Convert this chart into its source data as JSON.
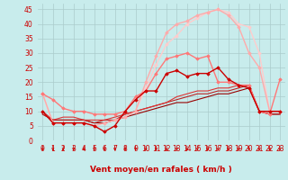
{
  "xlabel": "Vent moyen/en rafales ( km/h )",
  "background_color": "#c8ecec",
  "grid_color": "#aacccc",
  "xlim": [
    -0.5,
    23.5
  ],
  "ylim": [
    0,
    47
  ],
  "yticks": [
    0,
    5,
    10,
    15,
    20,
    25,
    30,
    35,
    40,
    45
  ],
  "xticks": [
    0,
    1,
    2,
    3,
    4,
    5,
    6,
    7,
    8,
    9,
    10,
    11,
    12,
    13,
    14,
    15,
    16,
    17,
    18,
    19,
    20,
    21,
    22,
    23
  ],
  "lines": [
    {
      "x": [
        0,
        1,
        2,
        3,
        4,
        5,
        6,
        7,
        8,
        9,
        10,
        11,
        12,
        13,
        14,
        15,
        16,
        17,
        18,
        19,
        20,
        21,
        22,
        23
      ],
      "y": [
        10,
        6,
        6,
        6,
        6,
        5,
        3,
        5,
        10,
        14,
        17,
        17,
        23,
        24,
        22,
        23,
        23,
        25,
        21,
        19,
        18,
        10,
        10,
        10
      ],
      "color": "#cc0000",
      "marker": "D",
      "ms": 1.8,
      "lw": 1.0,
      "zorder": 6
    },
    {
      "x": [
        0,
        1,
        2,
        3,
        4,
        5,
        6,
        7,
        8,
        9,
        10,
        11,
        12,
        13,
        14,
        15,
        16,
        17,
        18,
        19,
        20,
        21,
        22,
        23
      ],
      "y": [
        9,
        7,
        7,
        7,
        7,
        6,
        6,
        7,
        8,
        9,
        10,
        11,
        12,
        13,
        13,
        14,
        15,
        16,
        16,
        17,
        18,
        10,
        9,
        9
      ],
      "color": "#990000",
      "marker": null,
      "ms": 0,
      "lw": 0.8,
      "zorder": 4
    },
    {
      "x": [
        0,
        1,
        2,
        3,
        4,
        5,
        6,
        7,
        8,
        9,
        10,
        11,
        12,
        13,
        14,
        15,
        16,
        17,
        18,
        19,
        20,
        21,
        22,
        23
      ],
      "y": [
        9,
        7,
        7,
        7,
        7,
        6,
        7,
        7,
        9,
        10,
        11,
        12,
        13,
        14,
        15,
        16,
        16,
        17,
        17,
        18,
        19,
        10,
        9,
        9
      ],
      "color": "#bb2222",
      "marker": null,
      "ms": 0,
      "lw": 0.8,
      "zorder": 4
    },
    {
      "x": [
        0,
        1,
        2,
        3,
        4,
        5,
        6,
        7,
        8,
        9,
        10,
        11,
        12,
        13,
        14,
        15,
        16,
        17,
        18,
        19,
        20,
        21,
        22,
        23
      ],
      "y": [
        10,
        7,
        8,
        8,
        7,
        7,
        7,
        8,
        9,
        10,
        11,
        12,
        13,
        15,
        16,
        17,
        17,
        18,
        18,
        19,
        19,
        10,
        10,
        10
      ],
      "color": "#dd3333",
      "marker": null,
      "ms": 0,
      "lw": 0.8,
      "zorder": 4
    },
    {
      "x": [
        0,
        1,
        2,
        3,
        4,
        5,
        6,
        7,
        8,
        9,
        10,
        11,
        12,
        13,
        14,
        15,
        16,
        17,
        18,
        19,
        20,
        21,
        22,
        23
      ],
      "y": [
        16,
        14,
        11,
        10,
        10,
        9,
        9,
        9,
        10,
        15,
        17,
        23,
        28,
        29,
        30,
        28,
        29,
        20,
        20,
        19,
        19,
        10,
        9,
        21
      ],
      "color": "#ff7777",
      "marker": "D",
      "ms": 1.8,
      "lw": 1.0,
      "zorder": 5
    },
    {
      "x": [
        0,
        1,
        2,
        3,
        4,
        5,
        6,
        7,
        8,
        9,
        10,
        11,
        12,
        13,
        14,
        15,
        16,
        17,
        18,
        19,
        20,
        21,
        22,
        23
      ],
      "y": [
        16,
        6,
        6,
        6,
        6,
        5,
        6,
        7,
        8,
        10,
        20,
        29,
        37,
        40,
        41,
        43,
        44,
        45,
        43,
        39,
        30,
        25,
        10,
        10
      ],
      "color": "#ffaaaa",
      "marker": "D",
      "ms": 1.8,
      "lw": 1.0,
      "zorder": 4
    },
    {
      "x": [
        0,
        1,
        2,
        3,
        4,
        5,
        6,
        7,
        8,
        9,
        10,
        11,
        12,
        13,
        14,
        15,
        16,
        17,
        18,
        19,
        20,
        21,
        22,
        23
      ],
      "y": [
        16,
        6,
        6,
        6,
        6,
        5,
        6,
        7,
        8,
        10,
        18,
        26,
        33,
        36,
        40,
        42,
        44,
        45,
        44,
        40,
        39,
        30,
        10,
        10
      ],
      "color": "#ffcccc",
      "marker": "D",
      "ms": 1.8,
      "lw": 1.0,
      "zorder": 3
    }
  ],
  "tick_color": "#cc0000",
  "tick_fontsize": 5.5,
  "xlabel_fontsize": 6.5
}
